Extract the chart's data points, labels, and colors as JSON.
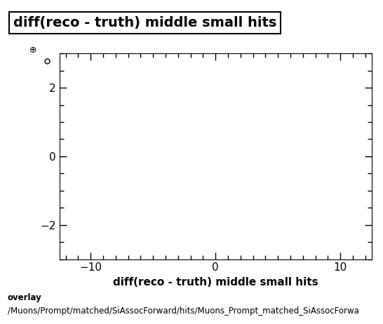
{
  "title": "diff(reco - truth) middle small hits",
  "xlabel": "diff(reco - truth) middle small hits",
  "xlim": [
    -12.5,
    12.5
  ],
  "ylim": [
    -3.0,
    3.0
  ],
  "xticks": [
    -10,
    0,
    10
  ],
  "yticks": [
    -2,
    0,
    2
  ],
  "footer_line1": "overlay",
  "footer_line2": "/Muons/Prompt/matched/SiAssocForward/hits/Muons_Prompt_matched_SiAssocForwa",
  "bg_color": "#ffffff",
  "title_fontsize": 14,
  "label_fontsize": 11,
  "tick_fontsize": 11,
  "footer_fontsize": 8.5
}
